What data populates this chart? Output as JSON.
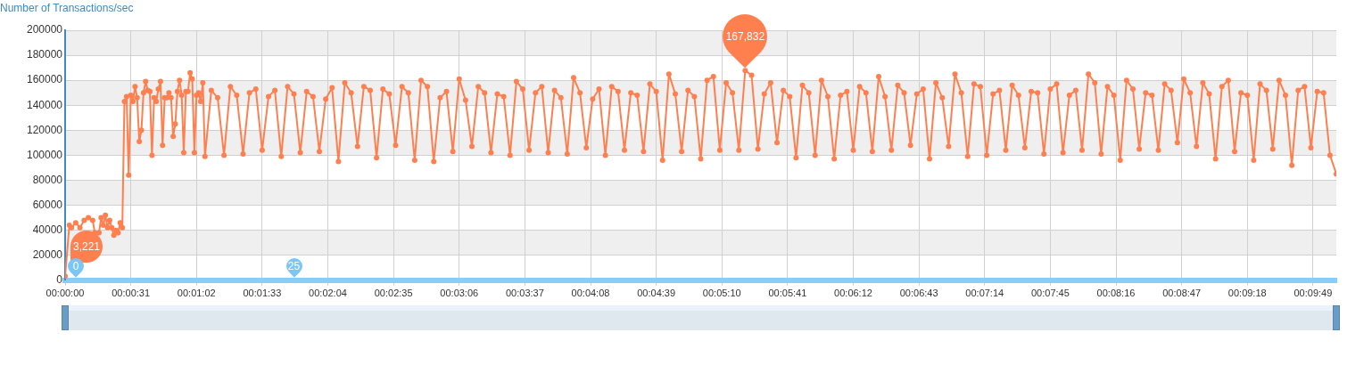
{
  "chart_data": {
    "type": "line",
    "ylabel": "Number of Transactions/sec",
    "series": [
      {
        "color": "#ff7f4f",
        "x": [
          0,
          2,
          3,
          5,
          7,
          9,
          11,
          13,
          14,
          16,
          17,
          18,
          19,
          20,
          21,
          22,
          23,
          24,
          25,
          26,
          27,
          28,
          29,
          30,
          31,
          32,
          33,
          34,
          35,
          36,
          37,
          38,
          39,
          40,
          41,
          42,
          43,
          44,
          45,
          46,
          47,
          48,
          49,
          50,
          51,
          52,
          53,
          54,
          55,
          56,
          57,
          58,
          59,
          60,
          61,
          62,
          63,
          64,
          65,
          66,
          69,
          72,
          75,
          78,
          81,
          84,
          87,
          90,
          93,
          96,
          99,
          102,
          105,
          108,
          111,
          114,
          117,
          120,
          123,
          126,
          129,
          132,
          135,
          138,
          141,
          144,
          147,
          150,
          153,
          156,
          159,
          162,
          165,
          168,
          171,
          174,
          177,
          180,
          183,
          186,
          189,
          192,
          195,
          198,
          201,
          204,
          207,
          210,
          213,
          216,
          219,
          222,
          225,
          228,
          231,
          234,
          237,
          240,
          243,
          246,
          249,
          252,
          255,
          258,
          261,
          264,
          267,
          270,
          273,
          276,
          279,
          282,
          285,
          288,
          291,
          294,
          297,
          300,
          303,
          306,
          309,
          312,
          315,
          318,
          321,
          324,
          327,
          330,
          333,
          336,
          339,
          342,
          345,
          348,
          351,
          354,
          357,
          360,
          363,
          366,
          369,
          372,
          375,
          378,
          381,
          384,
          387,
          390,
          393,
          396,
          399,
          402,
          405,
          408,
          411,
          414,
          417,
          420,
          423,
          426,
          429,
          432,
          435,
          438,
          441,
          444,
          447,
          450,
          453,
          456,
          459,
          462,
          465,
          468,
          471,
          474,
          477,
          480,
          483,
          486,
          489,
          492,
          495,
          498,
          501,
          504,
          507,
          510,
          513,
          516,
          519,
          522,
          525,
          528,
          531,
          534,
          537,
          540,
          543,
          546,
          549,
          552,
          555,
          558,
          561,
          564,
          567,
          570,
          573,
          576,
          579,
          582,
          585,
          588,
          591,
          594,
          597,
          600
        ],
        "values": [
          3221,
          44000,
          42000,
          46000,
          42000,
          48000,
          50000,
          48000,
          38000,
          38000,
          50000,
          44000,
          52000,
          42000,
          48000,
          42000,
          36000,
          40000,
          38000,
          46000,
          42000,
          143000,
          147000,
          84000,
          148000,
          143000,
          155000,
          146000,
          111000,
          120000,
          150000,
          159000,
          152000,
          151000,
          100000,
          146000,
          143000,
          153000,
          159000,
          108000,
          146000,
          146000,
          150000,
          146000,
          115000,
          125000,
          151000,
          160000,
          148000,
          102000,
          151000,
          151000,
          166000,
          161000,
          102000,
          148000,
          150000,
          143000,
          158000,
          99000,
          152000,
          146000,
          100000,
          155000,
          148000,
          101000,
          150000,
          153000,
          104000,
          147000,
          152000,
          99000,
          155000,
          149000,
          102000,
          151000,
          147000,
          103000,
          145000,
          154000,
          95000,
          158000,
          150000,
          107000,
          155000,
          152000,
          98000,
          153000,
          149000,
          108000,
          155000,
          150000,
          96000,
          160000,
          155000,
          95000,
          146000,
          151000,
          103000,
          161000,
          144000,
          107000,
          155000,
          150000,
          102000,
          149000,
          147000,
          100000,
          159000,
          153000,
          104000,
          150000,
          155000,
          102000,
          152000,
          146000,
          101000,
          162000,
          150000,
          106000,
          145000,
          153000,
          100000,
          155000,
          151000,
          104000,
          150000,
          148000,
          103000,
          157000,
          151000,
          96000,
          165000,
          149000,
          103000,
          152000,
          147000,
          97000,
          160000,
          163000,
          104000,
          158000,
          150000,
          104000,
          167832,
          164000,
          105000,
          149000,
          158000,
          110000,
          152000,
          147000,
          98000,
          156000,
          150000,
          100000,
          160000,
          147000,
          97000,
          148000,
          151000,
          104000,
          155000,
          150000,
          103000,
          163000,
          147000,
          104000,
          156000,
          150000,
          108000,
          149000,
          153000,
          97000,
          158000,
          146000,
          107000,
          165000,
          150000,
          99000,
          157000,
          155000,
          100000,
          149000,
          152000,
          104000,
          156000,
          148000,
          106000,
          151000,
          150000,
          101000,
          153000,
          157000,
          102000,
          148000,
          152000,
          104000,
          165000,
          158000,
          101000,
          155000,
          148000,
          96000,
          160000,
          153000,
          105000,
          150000,
          148000,
          104000,
          157000,
          152000,
          110000,
          161000,
          150000,
          107000,
          158000,
          149000,
          97000,
          155000,
          160000,
          103000,
          150000,
          148000,
          96000,
          157000,
          152000,
          105000,
          160000,
          148000,
          92000,
          152000,
          155000,
          106000,
          151000,
          150000,
          100000,
          85000
        ]
      }
    ],
    "xlim": [
      0,
      600
    ],
    "xticks": [
      {
        "value": 0,
        "label": "00:00:00"
      },
      {
        "value": 31,
        "label": "00:00:31"
      },
      {
        "value": 62,
        "label": "00:01:02"
      },
      {
        "value": 93,
        "label": "00:01:33"
      },
      {
        "value": 124,
        "label": "00:02:04"
      },
      {
        "value": 155,
        "label": "00:02:35"
      },
      {
        "value": 186,
        "label": "00:03:06"
      },
      {
        "value": 217,
        "label": "00:03:37"
      },
      {
        "value": 248,
        "label": "00:04:08"
      },
      {
        "value": 279,
        "label": "00:04:39"
      },
      {
        "value": 310,
        "label": "00:05:10"
      },
      {
        "value": 341,
        "label": "00:05:41"
      },
      {
        "value": 372,
        "label": "00:06:12"
      },
      {
        "value": 403,
        "label": "00:06:43"
      },
      {
        "value": 434,
        "label": "00:07:14"
      },
      {
        "value": 465,
        "label": "00:07:45"
      },
      {
        "value": 496,
        "label": "00:08:16"
      },
      {
        "value": 527,
        "label": "00:08:47"
      },
      {
        "value": 558,
        "label": "00:09:18"
      },
      {
        "value": 589,
        "label": "00:09:49"
      }
    ],
    "ylim": [
      0,
      200000
    ],
    "yticks": [
      0,
      20000,
      40000,
      60000,
      80000,
      100000,
      120000,
      140000,
      160000,
      180000,
      200000
    ],
    "grid": true,
    "marker": "circle",
    "line_style": "solid",
    "annotations": [
      {
        "text": "3,221",
        "x": 0,
        "y": 3221
      },
      {
        "text": "167,832",
        "x": 321,
        "y": 167832
      },
      {
        "text": "0",
        "x": 0
      },
      {
        "text": "25",
        "x": 108
      }
    ]
  }
}
